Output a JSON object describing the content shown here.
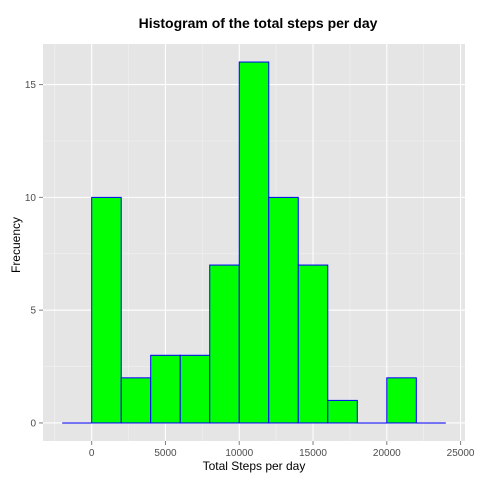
{
  "chart_data": {
    "type": "bar",
    "title": "Histogram of the total steps per day",
    "xlabel": "Total Steps per day",
    "ylabel": "Frecuency",
    "bin_width": 2000,
    "bins": [
      {
        "start": -2000,
        "end": 0,
        "count": 0
      },
      {
        "start": 0,
        "end": 2000,
        "count": 10
      },
      {
        "start": 2000,
        "end": 4000,
        "count": 2
      },
      {
        "start": 4000,
        "end": 6000,
        "count": 3
      },
      {
        "start": 6000,
        "end": 8000,
        "count": 3
      },
      {
        "start": 8000,
        "end": 10000,
        "count": 7
      },
      {
        "start": 10000,
        "end": 12000,
        "count": 16
      },
      {
        "start": 12000,
        "end": 14000,
        "count": 10
      },
      {
        "start": 14000,
        "end": 16000,
        "count": 7
      },
      {
        "start": 16000,
        "end": 18000,
        "count": 1
      },
      {
        "start": 18000,
        "end": 20000,
        "count": 0
      },
      {
        "start": 20000,
        "end": 22000,
        "count": 2
      },
      {
        "start": 22000,
        "end": 24000,
        "count": 0
      }
    ],
    "xlim": [
      -3300,
      25300
    ],
    "ylim": [
      -0.8,
      16.8
    ],
    "x_ticks": [
      0,
      5000,
      10000,
      15000,
      20000,
      25000
    ],
    "x_tick_labels": [
      "0",
      "5000",
      "10000",
      "15000",
      "20000",
      "25000"
    ],
    "y_ticks": [
      0,
      5,
      10,
      15
    ],
    "y_tick_labels": [
      "0",
      "5",
      "10",
      "15"
    ],
    "grid": true,
    "colors": {
      "bar_fill": "#00ff00",
      "bar_outline": "#0000ff",
      "panel_background": "#e5e5e5",
      "grid_major": "#ffffff",
      "grid_minor": "#f2f2f2"
    }
  }
}
